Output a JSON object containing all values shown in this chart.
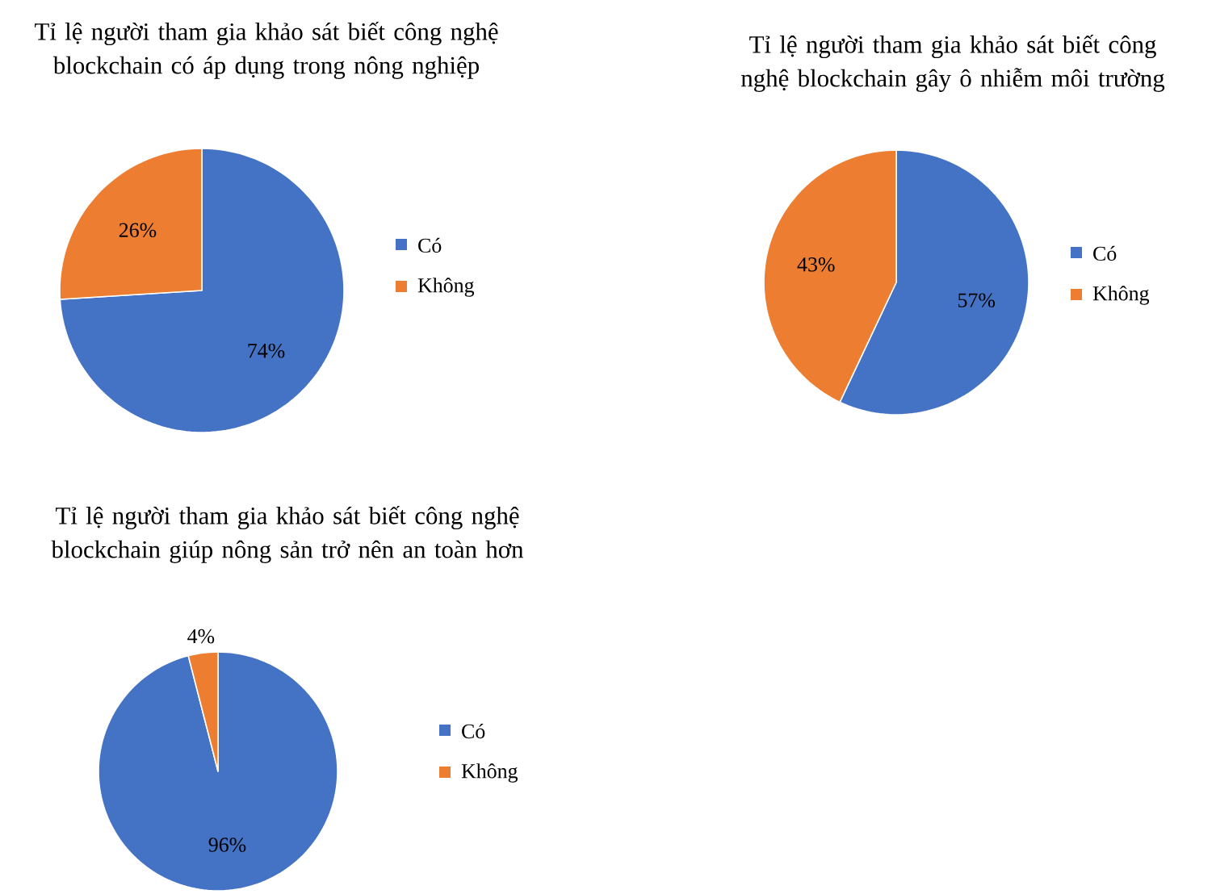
{
  "chart_data": [
    {
      "type": "pie",
      "title": "Tỉ lệ người tham gia khảo sát biết công nghệ blockchain có áp dụng trong nông nghiệp",
      "categories": [
        "Có",
        "Không"
      ],
      "values": [
        74,
        26
      ],
      "value_labels": [
        "74%",
        "26%"
      ],
      "colors": [
        "#4472c4",
        "#ed7d31"
      ],
      "legend": "right"
    },
    {
      "type": "pie",
      "title": "Tỉ lệ người tham gia khảo sát biết công nghệ blockchain gây ô nhiễm môi trường",
      "categories": [
        "Có",
        "Không"
      ],
      "values": [
        57,
        43
      ],
      "value_labels": [
        "57%",
        "43%"
      ],
      "colors": [
        "#4472c4",
        "#ed7d31"
      ],
      "legend": "right"
    },
    {
      "type": "pie",
      "title": "Tỉ lệ người tham gia khảo sát biết công nghệ blockchain giúp nông sản trở nên an toàn hơn",
      "categories": [
        "Có",
        "Không"
      ],
      "values": [
        96,
        4
      ],
      "value_labels": [
        "96%",
        "4%"
      ],
      "colors": [
        "#4472c4",
        "#ed7d31"
      ],
      "legend": "right"
    }
  ]
}
